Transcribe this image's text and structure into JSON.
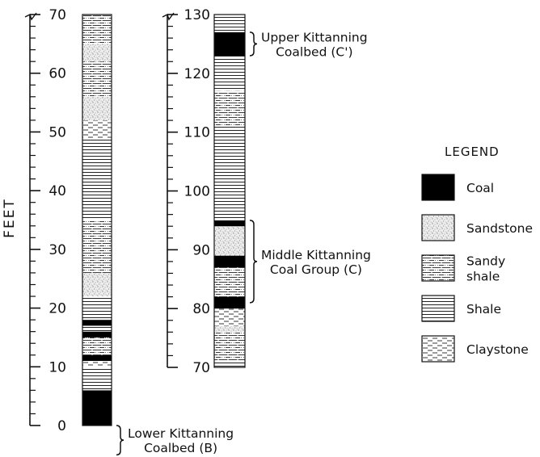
{
  "y_axis_label": "FEET",
  "column_left": {
    "ticks": [
      "70",
      "60",
      "50",
      "40",
      "30",
      "20",
      "10",
      "0"
    ],
    "units": [
      {
        "from": 0,
        "to": 6,
        "lith": "coal"
      },
      {
        "from": 6,
        "to": 10,
        "lith": "shale"
      },
      {
        "from": 10,
        "to": 11,
        "lith": "claystone"
      },
      {
        "from": 11,
        "to": 12,
        "lith": "coal"
      },
      {
        "from": 12,
        "to": 15,
        "lith": "sandy_shale"
      },
      {
        "from": 15,
        "to": 16,
        "lith": "coal"
      },
      {
        "from": 16,
        "to": 17,
        "lith": "shale"
      },
      {
        "from": 17,
        "to": 18,
        "lith": "coal"
      },
      {
        "from": 18,
        "to": 22,
        "lith": "shale"
      },
      {
        "from": 22,
        "to": 26,
        "lith": "sandstone"
      },
      {
        "from": 26,
        "to": 35,
        "lith": "sandy_shale"
      },
      {
        "from": 35,
        "to": 49,
        "lith": "shale"
      },
      {
        "from": 49,
        "to": 52,
        "lith": "claystone"
      },
      {
        "from": 52,
        "to": 56,
        "lith": "sandstone"
      },
      {
        "from": 56,
        "to": 62,
        "lith": "sandy_shale"
      },
      {
        "from": 62,
        "to": 65,
        "lith": "sandstone"
      },
      {
        "from": 65,
        "to": 70,
        "lith": "sandy_shale"
      }
    ],
    "annotations": [
      {
        "lines": [
          "Lower Kittanning",
          "Coalbed (B)"
        ],
        "from": -5,
        "to": 0
      }
    ]
  },
  "column_right": {
    "ticks": [
      "130",
      "120",
      "110",
      "100",
      "90",
      "80",
      "70"
    ],
    "units": [
      {
        "from": 70,
        "to": 71,
        "lith": "shale"
      },
      {
        "from": 71,
        "to": 76,
        "lith": "sandy_shale"
      },
      {
        "from": 76,
        "to": 77,
        "lith": "sandstone"
      },
      {
        "from": 77,
        "to": 80,
        "lith": "claystone"
      },
      {
        "from": 80,
        "to": 82,
        "lith": "coal"
      },
      {
        "from": 82,
        "to": 87,
        "lith": "sandy_shale"
      },
      {
        "from": 87,
        "to": 89,
        "lith": "coal"
      },
      {
        "from": 89,
        "to": 94,
        "lith": "sandstone"
      },
      {
        "from": 94,
        "to": 95,
        "lith": "coal"
      },
      {
        "from": 95,
        "to": 111,
        "lith": "shale"
      },
      {
        "from": 111,
        "to": 117,
        "lith": "sandy_shale"
      },
      {
        "from": 117,
        "to": 123,
        "lith": "shale"
      },
      {
        "from": 123,
        "to": 127,
        "lith": "coal"
      },
      {
        "from": 127,
        "to": 130,
        "lith": "shale"
      }
    ],
    "annotations": [
      {
        "lines": [
          "Upper Kittanning",
          "Coalbed (C')"
        ],
        "from": 123,
        "to": 127
      },
      {
        "lines": [
          "Middle Kittanning",
          "Coal Group (C)"
        ],
        "from": 81,
        "to": 95
      }
    ]
  },
  "legend": {
    "title": "LEGEND",
    "items": [
      {
        "key": "coal",
        "label": [
          "Coal"
        ]
      },
      {
        "key": "sandstone",
        "label": [
          "Sandstone"
        ]
      },
      {
        "key": "sandy_shale",
        "label": [
          "Sandy",
          "shale"
        ]
      },
      {
        "key": "shale",
        "label": [
          "Shale"
        ]
      },
      {
        "key": "claystone",
        "label": [
          "Claystone"
        ]
      }
    ]
  }
}
